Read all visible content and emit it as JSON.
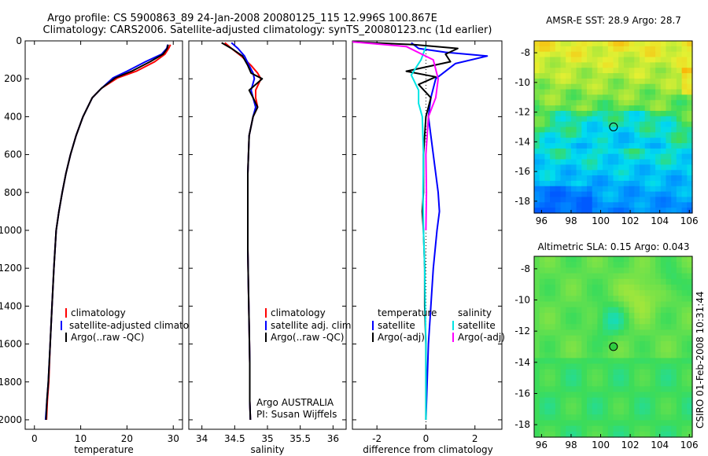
{
  "header": {
    "title_line1": "Argo profile: CS 5900863_89 24-Jan-2008 20080125_115 12.996S 100.867E",
    "title_line2": "Climatology: CARS2006. Satellite-adjusted climatology: synTS_20080123.nc (1d earlier)"
  },
  "side_label": "CSIRO 01-Feb-2008 10:31:44",
  "colors": {
    "climatology": "#ff0000",
    "satellite": "#0000ff",
    "argo": "#000000",
    "sat_salinity": "#00e5e5",
    "argo_salinity": "#ff00ff"
  },
  "chart_data": [
    {
      "type": "line",
      "id": "temperature",
      "xlabel": "temperature",
      "ylabel": "",
      "xlim": [
        -2,
        32
      ],
      "ylim": [
        2050,
        0
      ],
      "xticks": [
        0,
        10,
        20,
        30
      ],
      "xtick_labels": [
        "0",
        "10",
        "20",
        "30"
      ],
      "yticks": [
        0,
        200,
        400,
        600,
        800,
        1000,
        1200,
        1400,
        1600,
        1800,
        2000
      ],
      "ytick_labels": [
        "0",
        "200",
        "400",
        "600",
        "800",
        "1000",
        "1200",
        "1400",
        "1600",
        "1800",
        "2000"
      ],
      "legend": [
        "climatology",
        "satellite-adjusted climatology",
        "Argo(..raw -QC)"
      ],
      "series": [
        {
          "name": "climatology",
          "color": "#ff0000",
          "x": [
            29.4,
            29.0,
            28.2,
            26.0,
            22.0,
            18.0,
            14.5,
            12.5,
            10.5,
            9.0,
            7.8,
            6.8,
            6.0,
            5.3,
            4.7,
            4.2,
            3.8,
            3.4,
            3.1,
            2.8,
            2.6
          ],
          "y": [
            20,
            40,
            70,
            110,
            160,
            195,
            250,
            300,
            400,
            500,
            600,
            700,
            800,
            900,
            1000,
            1200,
            1400,
            1600,
            1800,
            1900,
            2000
          ]
        },
        {
          "name": "satellite",
          "color": "#0000ff",
          "x": [
            28.8,
            28.6,
            27.5,
            24.0,
            20.0,
            17.0,
            14.5,
            12.5,
            10.5,
            9.0,
            7.8,
            6.8,
            6.0,
            5.3,
            4.7,
            4.2,
            3.8,
            3.4,
            3.0,
            2.7,
            2.4
          ],
          "y": [
            20,
            40,
            70,
            110,
            160,
            195,
            250,
            300,
            400,
            500,
            600,
            700,
            800,
            900,
            1000,
            1200,
            1400,
            1600,
            1800,
            1900,
            2000
          ]
        },
        {
          "name": "argo",
          "color": "#000000",
          "x": [
            28.9,
            28.7,
            27.8,
            25.0,
            21.0,
            17.5,
            14.5,
            12.5,
            10.5,
            9.0,
            7.8,
            6.8,
            6.0,
            5.3,
            4.7,
            4.2,
            3.8,
            3.4,
            3.0,
            2.7,
            2.5
          ],
          "y": [
            20,
            40,
            70,
            110,
            160,
            195,
            250,
            300,
            400,
            500,
            600,
            700,
            800,
            900,
            1000,
            1200,
            1400,
            1600,
            1800,
            1900,
            2000
          ]
        }
      ]
    },
    {
      "type": "line",
      "id": "salinity",
      "xlabel": "salinity",
      "xlim": [
        33.8,
        36.2
      ],
      "ylim": [
        2050,
        0
      ],
      "xticks": [
        34,
        34.5,
        35,
        35.5,
        36
      ],
      "xtick_labels": [
        "34",
        "34.5",
        "35",
        "35.5",
        "36"
      ],
      "legend": [
        "climatology",
        "satellite adj. clim.",
        "Argo(..raw -QC)"
      ],
      "annotation_line1": "Argo AUSTRALIA",
      "annotation_line2": "PI: Susan Wijffels",
      "series": [
        {
          "name": "climatology",
          "color": "#ff0000",
          "x": [
            34.35,
            34.45,
            34.6,
            34.75,
            34.85,
            34.9,
            34.82,
            34.82,
            34.85,
            34.78,
            34.72,
            34.7,
            34.7,
            34.7,
            34.71,
            34.72,
            34.73,
            34.73,
            34.73,
            34.74
          ],
          "y": [
            10,
            40,
            80,
            130,
            170,
            200,
            260,
            300,
            350,
            400,
            500,
            700,
            900,
            1100,
            1300,
            1500,
            1700,
            1800,
            1900,
            2000
          ]
        },
        {
          "name": "satellite",
          "color": "#0000ff",
          "x": [
            34.45,
            34.55,
            34.65,
            34.72,
            34.78,
            34.8,
            34.75,
            34.78,
            34.82,
            34.78,
            34.72,
            34.7,
            34.7,
            34.7,
            34.71,
            34.72,
            34.73,
            34.73,
            34.73,
            34.74
          ],
          "y": [
            10,
            40,
            80,
            130,
            170,
            200,
            260,
            300,
            350,
            400,
            500,
            700,
            900,
            1100,
            1300,
            1500,
            1700,
            1800,
            1900,
            2000
          ]
        },
        {
          "name": "argo",
          "color": "#000000",
          "x": [
            34.3,
            34.45,
            34.62,
            34.7,
            34.75,
            34.92,
            34.72,
            34.78,
            34.85,
            34.78,
            34.72,
            34.7,
            34.7,
            34.7,
            34.71,
            34.72,
            34.73,
            34.73,
            34.73,
            34.74
          ],
          "y": [
            10,
            40,
            80,
            130,
            170,
            200,
            260,
            300,
            350,
            400,
            500,
            700,
            900,
            1100,
            1300,
            1500,
            1700,
            1800,
            1900,
            2000
          ]
        }
      ]
    },
    {
      "type": "line",
      "id": "difference",
      "xlabel": "difference from climatology",
      "xlim": [
        -3,
        3.1
      ],
      "ylim": [
        2050,
        0
      ],
      "xticks": [
        -2,
        0,
        2
      ],
      "xtick_labels": [
        "-2",
        "0",
        "2"
      ],
      "legend_temp_title": "temperature",
      "legend_sal_title": "salinity",
      "legend": [
        "satellite",
        "Argo(-adj)",
        "satellite",
        "Argo(-adj)"
      ],
      "series": [
        {
          "name": "temperature satellite",
          "color": "#0000ff",
          "x": [
            -0.6,
            -0.3,
            0.8,
            2.5,
            1.2,
            0.4,
            0.2,
            0.1,
            0.2,
            0.3,
            0.4,
            0.5,
            0.55,
            0.45,
            0.3,
            0.2,
            0.1,
            0.05,
            0.0
          ],
          "y": [
            10,
            40,
            60,
            80,
            120,
            200,
            300,
            400,
            500,
            600,
            700,
            800,
            900,
            1000,
            1200,
            1400,
            1600,
            1800,
            2000
          ]
        },
        {
          "name": "temperature Argo",
          "color": "#000000",
          "x": [
            -3.0,
            -0.5,
            1.3,
            0.8,
            1.0,
            -0.8,
            0.4,
            -0.3,
            0.2,
            0.0,
            -0.1,
            -0.1,
            -0.15,
            -0.1,
            -0.05,
            -0.05,
            0.0,
            0.0,
            0.0
          ],
          "y": [
            5,
            20,
            40,
            70,
            110,
            160,
            190,
            230,
            300,
            400,
            600,
            800,
            900,
            1000,
            1200,
            1400,
            1600,
            1800,
            2000
          ]
        },
        {
          "name": "salinity satellite",
          "color": "#00e5e5",
          "x": [
            0.0,
            -0.2,
            -0.6,
            -0.3,
            -0.3,
            -0.15,
            -0.1,
            -0.12,
            -0.1,
            -0.05,
            -0.03,
            0.0,
            0.0,
            0.0
          ],
          "y": [
            30,
            100,
            180,
            260,
            330,
            400,
            600,
            800,
            1000,
            1200,
            1400,
            1600,
            1800,
            2000
          ]
        },
        {
          "name": "salinity Argo",
          "color": "#ff00ff",
          "x": [
            -3.0,
            -0.8,
            0.3,
            0.5,
            0.4,
            0.1,
            0.0,
            0.02,
            0.0
          ],
          "y": [
            5,
            30,
            100,
            200,
            300,
            400,
            600,
            800,
            1000
          ]
        }
      ]
    },
    {
      "type": "heatmap",
      "id": "sst_map",
      "title": "AMSR-E SST: 28.9 Argo: 28.7",
      "xlim": [
        95.5,
        106.2
      ],
      "ylim": [
        -18.8,
        -7.2
      ],
      "xticks": [
        96,
        98,
        100,
        102,
        104,
        106
      ],
      "xtick_labels": [
        "96",
        "98",
        "100",
        "102",
        "104",
        "106"
      ],
      "yticks": [
        -8,
        -10,
        -12,
        -14,
        -16,
        -18
      ],
      "ytick_labels": [
        "-8",
        "-10",
        "-12",
        "-14",
        "-16",
        "-18"
      ],
      "marker": {
        "lon": 100.867,
        "lat": -12.996
      }
    },
    {
      "type": "heatmap",
      "id": "sla_map",
      "title": "Altimetric SLA: 0.15 Argo: 0.043",
      "xlim": [
        95.5,
        106.2
      ],
      "ylim": [
        -18.8,
        -7.2
      ],
      "xticks": [
        96,
        98,
        100,
        102,
        104,
        106
      ],
      "xtick_labels": [
        "96",
        "98",
        "100",
        "102",
        "104",
        "106"
      ],
      "yticks": [
        -8,
        -10,
        -12,
        -14,
        -16,
        -18
      ],
      "ytick_labels": [
        "-8",
        "-10",
        "-12",
        "-14",
        "-16",
        "-18"
      ],
      "marker": {
        "lon": 100.867,
        "lat": -12.996
      }
    }
  ]
}
